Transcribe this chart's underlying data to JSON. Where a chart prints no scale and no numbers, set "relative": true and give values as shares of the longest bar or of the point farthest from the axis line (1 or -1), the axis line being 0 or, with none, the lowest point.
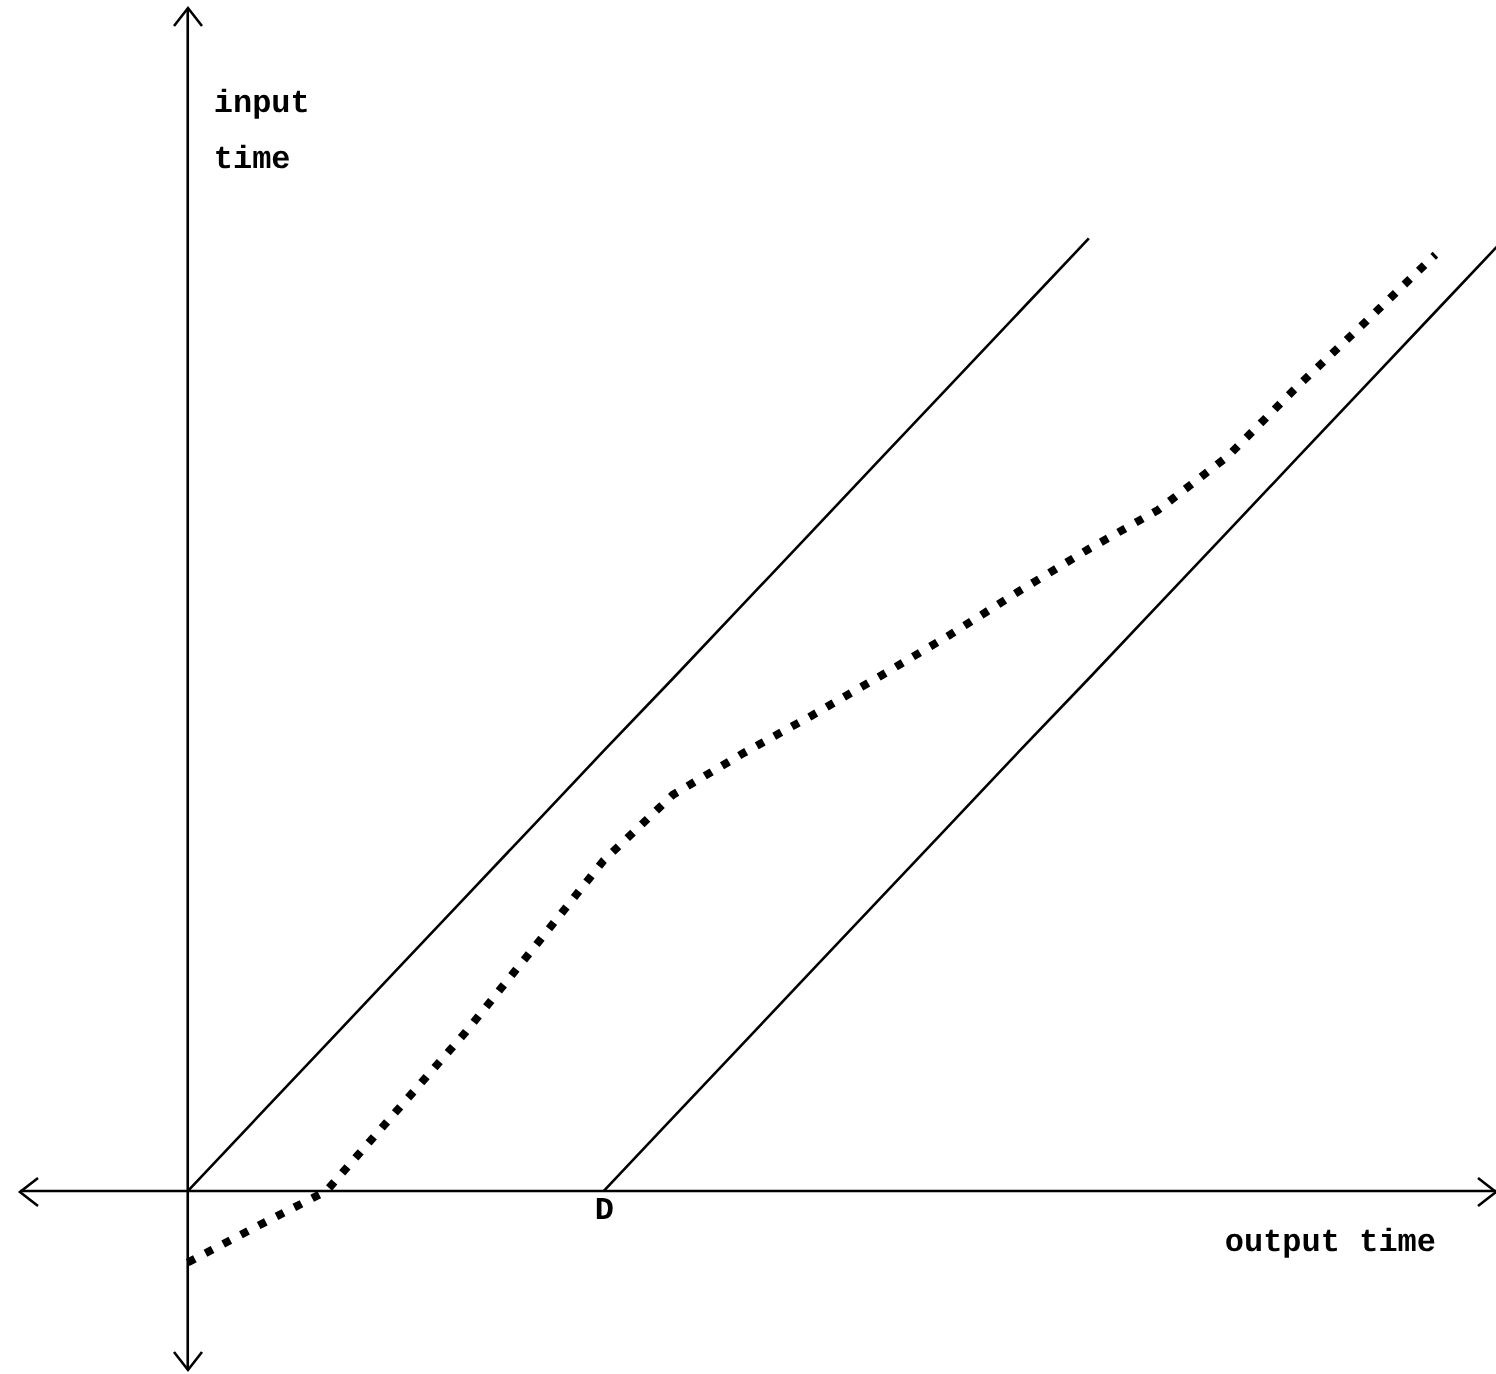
{
  "chart_data": {
    "type": "line",
    "relative": true,
    "xlabel": "output time",
    "ylabel": "input time",
    "annotations": [
      "D"
    ],
    "legend": false,
    "marker": "none",
    "categories": [
      null,
      null,
      null,
      null,
      null,
      null,
      null,
      null,
      null,
      null,
      null,
      null,
      null,
      null,
      null,
      null,
      null,
      null,
      null,
      null,
      null,
      null
    ],
    "series": [
      {
        "color": "#000000",
        "values": [
          null,
          null,
          0,
          0.077,
          0.154,
          0.231,
          0.308,
          0.385,
          0.462,
          0.538,
          0.615,
          0.692,
          0.769,
          0.846,
          0.923,
          1,
          null,
          null,
          null,
          null,
          null,
          null
        ],
        "line_style": "solid"
      },
      {
        "color": "#000000",
        "values": [
          null,
          null,
          null,
          null,
          null,
          null,
          null,
          null,
          0,
          0.077,
          0.154,
          0.231,
          0.308,
          0.385,
          0.462,
          0.538,
          0.615,
          0.692,
          0.769,
          0.846,
          0.923,
          1
        ],
        "line_style": "solid"
      },
      {
        "color": "#000000",
        "values": [
          null,
          null,
          -0.075,
          -0.037,
          0,
          0.083,
          0.166,
          0.256,
          0.347,
          0.416,
          0.459,
          0.499,
          0.541,
          0.584,
          0.63,
          0.674,
          0.715,
          0.771,
          0.844,
          0.913,
          0.983,
          null
        ],
        "line_style": "dotted"
      }
    ]
  }
}
